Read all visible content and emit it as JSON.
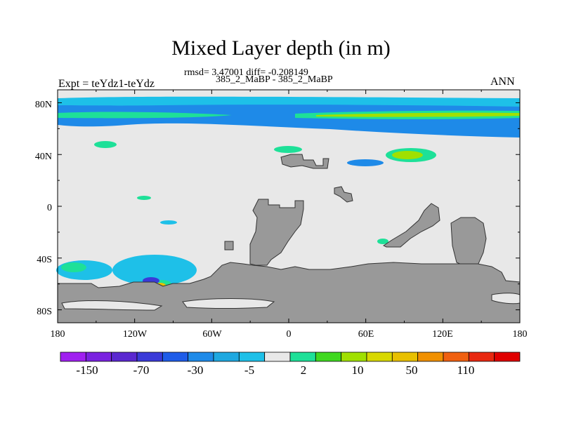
{
  "title": "Mixed Layer depth (in m)",
  "stats_text": "rmsd= 3.47001 diff= -0.208149",
  "subtitle": "385_2_MaBP - 385_2_MaBP",
  "left_label": "Expt = teYdz1-teYdz",
  "right_label": "ANN",
  "lat_ticks": [
    "80N",
    "40N",
    "0",
    "40S",
    "80S"
  ],
  "lon_ticks": [
    "180",
    "120W",
    "60W",
    "0",
    "60E",
    "120E",
    "180"
  ],
  "colorbar": {
    "colors": [
      "#a020f0",
      "#7a22e0",
      "#5a28d0",
      "#3a3ad8",
      "#1e5ce8",
      "#1e8ae8",
      "#1ea8e0",
      "#1ec0e8",
      "#e8e8e8",
      "#1ee098",
      "#40d820",
      "#a0e000",
      "#d8d800",
      "#e8c000",
      "#f09000",
      "#f06010",
      "#e82810",
      "#e00000"
    ],
    "labels": [
      "-150",
      "-70",
      "-30",
      "-5",
      "2",
      "10",
      "50",
      "110"
    ]
  },
  "colors": {
    "land": "#999999",
    "ocean_neutral": "#e8e8e8",
    "deep_blue": "#1e8ae8",
    "light_blue": "#1ec0e8",
    "green": "#1ee098",
    "yellow_green": "#a0e000",
    "orange": "#e8c000",
    "blue": "#3a3ad8"
  }
}
